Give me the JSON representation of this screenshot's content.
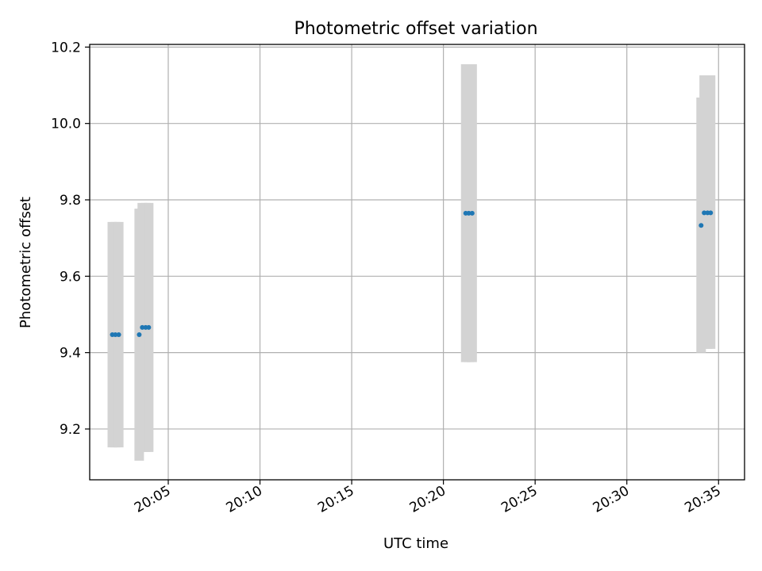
{
  "chart_data": {
    "type": "scatter",
    "title": "Photometric offset variation",
    "xlabel": "UTC time",
    "ylabel": "Photometric offset",
    "x_is_time": true,
    "xlim": [
      "20:00:43",
      "20:36:25"
    ],
    "ylim": [
      9.067,
      10.207
    ],
    "x_ticks": [
      "20:05",
      "20:10",
      "20:15",
      "20:20",
      "20:25",
      "20:30",
      "20:35"
    ],
    "y_ticks": [
      "9.2",
      "9.4",
      "9.6",
      "9.8",
      "10.0",
      "10.2"
    ],
    "grid": true,
    "colors": {
      "points": "#1f77b4",
      "errorbars": "#d3d3d3",
      "grid": "#b0b0b0"
    },
    "series": [
      {
        "points": [
          {
            "x": "20:01:57",
            "y": 9.447,
            "ylow": 9.152,
            "yhigh": 9.742
          },
          {
            "x": "20:02:07",
            "y": 9.447,
            "ylow": 9.152,
            "yhigh": 9.742
          },
          {
            "x": "20:02:18",
            "y": 9.447,
            "ylow": 9.152,
            "yhigh": 9.742
          },
          {
            "x": "20:03:25",
            "y": 9.447,
            "ylow": 9.117,
            "yhigh": 9.777
          },
          {
            "x": "20:03:35",
            "y": 9.466,
            "ylow": 9.14,
            "yhigh": 9.792
          },
          {
            "x": "20:03:46",
            "y": 9.466,
            "ylow": 9.14,
            "yhigh": 9.792
          },
          {
            "x": "20:03:56",
            "y": 9.466,
            "ylow": 9.14,
            "yhigh": 9.792
          },
          {
            "x": "20:21:13",
            "y": 9.765,
            "ylow": 9.375,
            "yhigh": 10.155
          },
          {
            "x": "20:21:23",
            "y": 9.765,
            "ylow": 9.375,
            "yhigh": 10.155
          },
          {
            "x": "20:21:34",
            "y": 9.765,
            "ylow": 9.375,
            "yhigh": 10.155
          },
          {
            "x": "20:34:03",
            "y": 9.733,
            "ylow": 9.4,
            "yhigh": 10.068
          },
          {
            "x": "20:34:13",
            "y": 9.766,
            "ylow": 9.41,
            "yhigh": 10.126
          },
          {
            "x": "20:34:24",
            "y": 9.766,
            "ylow": 9.41,
            "yhigh": 10.126
          },
          {
            "x": "20:34:34",
            "y": 9.766,
            "ylow": 9.41,
            "yhigh": 10.126
          }
        ]
      }
    ]
  }
}
